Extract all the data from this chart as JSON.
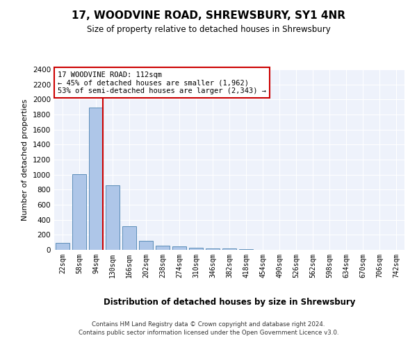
{
  "title": "17, WOODVINE ROAD, SHREWSBURY, SY1 4NR",
  "subtitle": "Size of property relative to detached houses in Shrewsbury",
  "xlabel": "Distribution of detached houses by size in Shrewsbury",
  "ylabel": "Number of detached properties",
  "bar_color": "#aec6e8",
  "bar_edge_color": "#5b8db8",
  "categories": [
    "22sqm",
    "58sqm",
    "94sqm",
    "130sqm",
    "166sqm",
    "202sqm",
    "238sqm",
    "274sqm",
    "310sqm",
    "346sqm",
    "382sqm",
    "418sqm",
    "454sqm",
    "490sqm",
    "526sqm",
    "562sqm",
    "598sqm",
    "634sqm",
    "670sqm",
    "706sqm",
    "742sqm"
  ],
  "values": [
    90,
    1010,
    1890,
    860,
    315,
    120,
    58,
    50,
    30,
    20,
    15,
    10,
    0,
    0,
    0,
    0,
    0,
    0,
    0,
    0,
    0
  ],
  "ylim": [
    0,
    2400
  ],
  "yticks": [
    0,
    200,
    400,
    600,
    800,
    1000,
    1200,
    1400,
    1600,
    1800,
    2000,
    2200,
    2400
  ],
  "vline_color": "#cc0000",
  "vline_x_index": 2,
  "annotation_text": "17 WOODVINE ROAD: 112sqm\n← 45% of detached houses are smaller (1,962)\n53% of semi-detached houses are larger (2,343) →",
  "annotation_box_color": "#ffffff",
  "annotation_box_edge": "#cc0000",
  "footer_line1": "Contains HM Land Registry data © Crown copyright and database right 2024.",
  "footer_line2": "Contains public sector information licensed under the Open Government Licence v3.0.",
  "bg_color": "#eef2fb",
  "grid_color": "#ffffff",
  "fig_bg_color": "#ffffff"
}
